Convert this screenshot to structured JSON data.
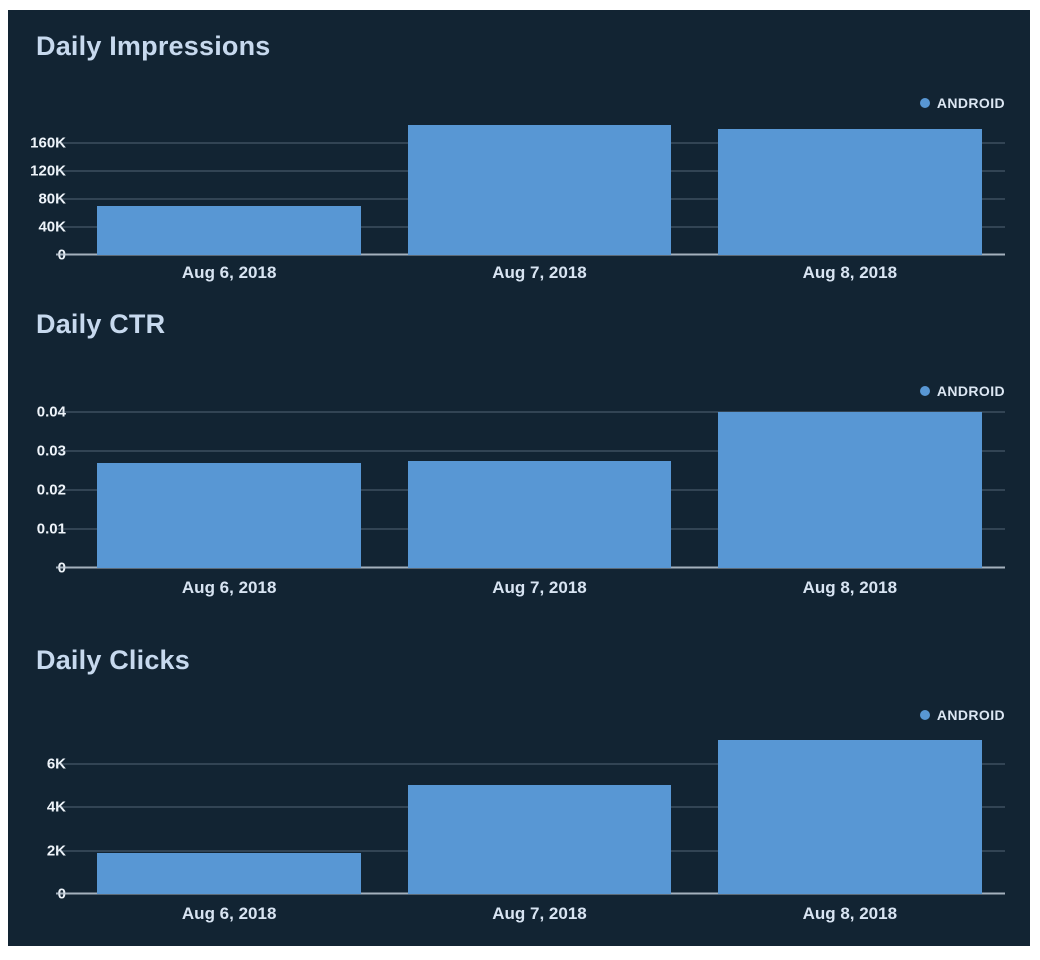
{
  "colors": {
    "panel_background": "#122433",
    "page_background": "#ffffff",
    "bar_fill": "#5897d4",
    "title_text": "#c7d9ee",
    "axis_text": "#eef4fa",
    "gridline": "#a4b4c4"
  },
  "chart_data": [
    {
      "type": "bar",
      "title": "Daily Impressions",
      "legend_label": "ANDROID",
      "legend_position": "top-right",
      "grid": true,
      "xlabel": "",
      "ylabel": "",
      "categories": [
        "Aug 6, 2018",
        "Aug 7, 2018",
        "Aug 8, 2018"
      ],
      "values": [
        70000,
        185000,
        180000
      ],
      "ylim": [
        0,
        204000
      ],
      "yticks": [
        {
          "value": 0,
          "label": "0"
        },
        {
          "value": 40000,
          "label": "40K"
        },
        {
          "value": 80000,
          "label": "80K"
        },
        {
          "value": 120000,
          "label": "120K"
        },
        {
          "value": 160000,
          "label": "160K"
        }
      ]
    },
    {
      "type": "bar",
      "title": "Daily CTR",
      "legend_label": "ANDROID",
      "legend_position": "top-right",
      "grid": true,
      "xlabel": "",
      "ylabel": "",
      "categories": [
        "Aug 6, 2018",
        "Aug 7, 2018",
        "Aug 8, 2018"
      ],
      "values": [
        0.027,
        0.0275,
        0.04
      ],
      "ylim": [
        0,
        0.041
      ],
      "yticks": [
        {
          "value": 0,
          "label": "0"
        },
        {
          "value": 0.01,
          "label": "0.01"
        },
        {
          "value": 0.02,
          "label": "0.02"
        },
        {
          "value": 0.03,
          "label": "0.03"
        },
        {
          "value": 0.04,
          "label": "0.04"
        }
      ]
    },
    {
      "type": "bar",
      "title": "Daily Clicks",
      "legend_label": "ANDROID",
      "legend_position": "top-right",
      "grid": true,
      "xlabel": "",
      "ylabel": "",
      "categories": [
        "Aug 6, 2018",
        "Aug 7, 2018",
        "Aug 8, 2018"
      ],
      "values": [
        1900,
        5000,
        7100
      ],
      "ylim": [
        0,
        7360
      ],
      "yticks": [
        {
          "value": 0,
          "label": "0"
        },
        {
          "value": 2000,
          "label": "2K"
        },
        {
          "value": 4000,
          "label": "4K"
        },
        {
          "value": 6000,
          "label": "6K"
        }
      ]
    }
  ]
}
